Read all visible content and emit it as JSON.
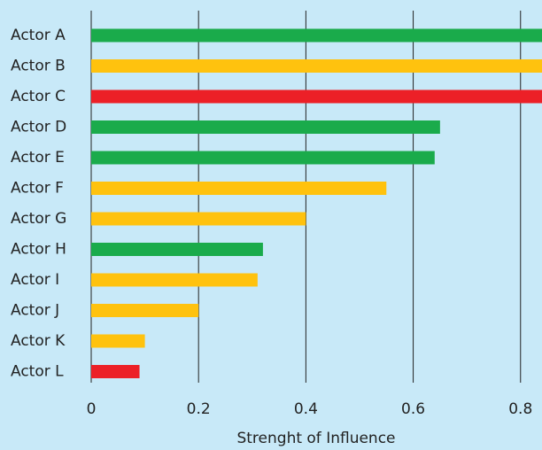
{
  "chart_data": {
    "type": "hbar",
    "x_label": "Strenght of Influence",
    "categories": [
      "Actor A",
      "Actor B",
      "Actor C",
      "Actor D",
      "Actor E",
      "Actor F",
      "Actor G",
      "Actor H",
      "Actor I",
      "Actor J",
      "Actor K",
      "Actor L"
    ],
    "values": [
      0.84,
      0.84,
      0.84,
      0.65,
      0.64,
      0.55,
      0.4,
      0.32,
      0.31,
      0.2,
      0.1,
      0.09
    ],
    "colors": [
      "#1aab4b",
      "#ffc20e",
      "#ec2027",
      "#1aab4b",
      "#1aab4b",
      "#ffc20e",
      "#ffc20e",
      "#1aab4b",
      "#ffc20e",
      "#ffc20e",
      "#ffc20e",
      "#ec2027"
    ],
    "xlim": [
      0,
      0.84
    ],
    "xticks": [
      0,
      0.2,
      0.4,
      0.6,
      0.8
    ],
    "grid": true
  }
}
